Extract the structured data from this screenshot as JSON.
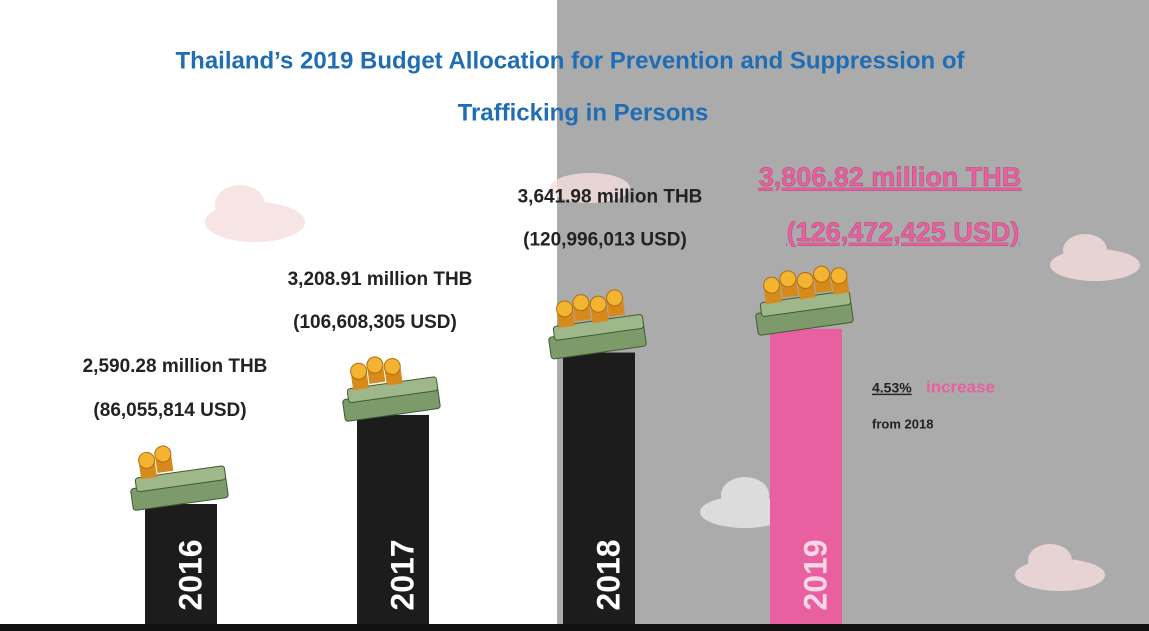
{
  "chart_data": {
    "type": "bar",
    "title": "Thailand’s 2019 Budget Allocation for Prevention and Suppression of",
    "subtitle": "Trafficking in Persons",
    "categories": [
      "2016",
      "2017",
      "2018",
      "2019"
    ],
    "values": [
      2590.28,
      3208.91,
      3641.98,
      3806.82
    ],
    "value_labels": [
      "2,590.28 million THB",
      "3,208.91 million THB",
      "3,641.98 million THB",
      "3,806.82 million THB"
    ],
    "usd_labels": [
      "(86,055,814 USD)",
      "(106,608,305 USD)",
      "(120,996,013 USD)",
      "(126,472,425 USD)"
    ],
    "colors": [
      "#1c1c1c",
      "#1c1c1c",
      "#1c1c1c",
      "#e8609f"
    ],
    "ylim": [
      1750,
      4500
    ],
    "annotation": {
      "change": "4.53%",
      "word": "increase",
      "note": "from 2018"
    }
  }
}
